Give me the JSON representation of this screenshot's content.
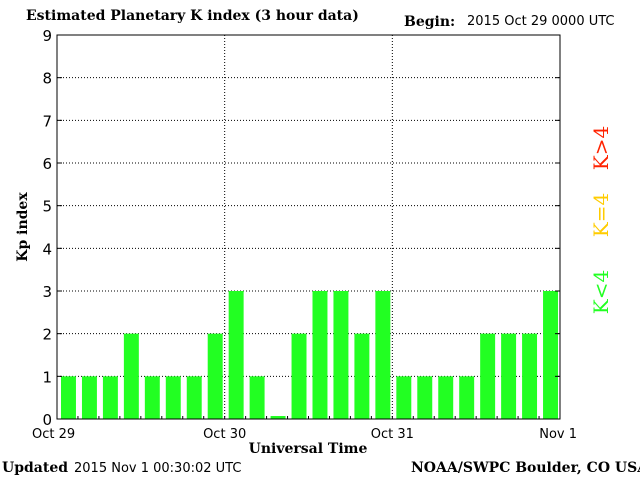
{
  "header": {
    "title": "Estimated Planetary K index (3 hour data)",
    "begin_label": "Begin:",
    "begin_value": "2015 Oct 29 0000 UTC"
  },
  "footer": {
    "updated_label": "Updated",
    "updated_value": "2015 Nov  1 00:30:02 UTC",
    "credit": "NOAA/SWPC Boulder, CO USA"
  },
  "colors": {
    "below": "#22ff22",
    "equal": "#ffcc00",
    "above": "#ff2200"
  },
  "chart_data": {
    "type": "bar",
    "title": "Estimated Planetary K index (3 hour data)",
    "xlabel": "Universal Time",
    "ylabel": "Kp index",
    "ylim": [
      0,
      9
    ],
    "yticks": [
      0,
      1,
      2,
      3,
      4,
      5,
      6,
      7,
      8,
      9
    ],
    "xticks": [
      "Oct 29",
      "Oct 30",
      "Oct 31",
      "Nov 1"
    ],
    "interval_hours": 3,
    "values": [
      1,
      1,
      1,
      2,
      1,
      1,
      1,
      2,
      3,
      1,
      0.07,
      2,
      3,
      3,
      2,
      3,
      1,
      1,
      1,
      1,
      2,
      2,
      2,
      3
    ],
    "legend": [
      "K<4",
      "K=4",
      "K>4"
    ],
    "grid": true
  }
}
